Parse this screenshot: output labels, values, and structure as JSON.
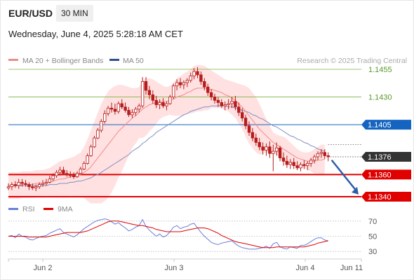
{
  "header": {
    "pair": "EUR/USD",
    "timeframe": "30 MIN",
    "datetime": "Wednesday, June 4, 2025 5:28:18 AM CET"
  },
  "legend": {
    "ma20": "MA 20 + Bollinger Bands",
    "ma50": "MA 50",
    "credit": "Research © 2025 Trading Central",
    "rsi": "RSI",
    "ma9": "9MA"
  },
  "colors": {
    "candle": "#b71c1c",
    "ma20": "#f08a8a",
    "band": "#ffc8c8",
    "ma50": "#8090c0",
    "support": "#e00000",
    "resistance": "#7cb342",
    "pivot": "#1565c0",
    "current": "#333333",
    "rsi": "#6a7fd8",
    "rsi_ma": "#e00000"
  },
  "chart_data": [
    {
      "type": "candlestick",
      "ylim": [
        1.1328,
        1.1467
      ],
      "x_labels": [
        "Jun 2",
        "Jun 3",
        "Jun 4",
        "Jun 11"
      ],
      "levels": [
        {
          "value": 1.1455,
          "label": "1.1455",
          "kind": "resistance"
        },
        {
          "value": 1.143,
          "label": "1.1430",
          "kind": "resistance"
        },
        {
          "value": 1.1405,
          "label": "1.1405",
          "kind": "pivot"
        },
        {
          "value": 1.1376,
          "label": "1.1376",
          "kind": "current"
        },
        {
          "value": 1.136,
          "label": "1.1360",
          "kind": "support"
        },
        {
          "value": 1.134,
          "label": "1.1340",
          "kind": "support"
        }
      ],
      "candles": [
        [
          1.1348,
          1.1352,
          1.1346,
          1.1349
        ],
        [
          1.1349,
          1.1353,
          1.1346,
          1.1351
        ],
        [
          1.1351,
          1.1354,
          1.1348,
          1.135
        ],
        [
          1.135,
          1.1356,
          1.1347,
          1.1353
        ],
        [
          1.1353,
          1.1356,
          1.1349,
          1.1352
        ],
        [
          1.1352,
          1.1355,
          1.1349,
          1.1351
        ],
        [
          1.1351,
          1.1353,
          1.1346,
          1.1349
        ],
        [
          1.1349,
          1.1352,
          1.1346,
          1.1348
        ],
        [
          1.1348,
          1.1351,
          1.1345,
          1.1349
        ],
        [
          1.1349,
          1.1353,
          1.1347,
          1.1351
        ],
        [
          1.1351,
          1.1355,
          1.1349,
          1.1352
        ],
        [
          1.1352,
          1.1356,
          1.135,
          1.1353
        ],
        [
          1.1353,
          1.1359,
          1.1352,
          1.1356
        ],
        [
          1.1356,
          1.1361,
          1.1354,
          1.1359
        ],
        [
          1.1359,
          1.1364,
          1.1357,
          1.1362
        ],
        [
          1.1362,
          1.1367,
          1.1359,
          1.1364
        ],
        [
          1.1364,
          1.1367,
          1.136,
          1.1361
        ],
        [
          1.1361,
          1.1364,
          1.1358,
          1.136
        ],
        [
          1.136,
          1.1363,
          1.1357,
          1.1359
        ],
        [
          1.1359,
          1.1362,
          1.1356,
          1.1358
        ],
        [
          1.1358,
          1.1363,
          1.1357,
          1.1361
        ],
        [
          1.1361,
          1.1367,
          1.136,
          1.1365
        ],
        [
          1.1365,
          1.1372,
          1.1364,
          1.137
        ],
        [
          1.137,
          1.1379,
          1.1369,
          1.1377
        ],
        [
          1.1377,
          1.1387,
          1.1376,
          1.1385
        ],
        [
          1.1385,
          1.1395,
          1.1384,
          1.1393
        ],
        [
          1.1393,
          1.1402,
          1.1392,
          1.14
        ],
        [
          1.14,
          1.141,
          1.1398,
          1.1408
        ],
        [
          1.1408,
          1.1418,
          1.1406,
          1.1415
        ],
        [
          1.1415,
          1.1422,
          1.1413,
          1.142
        ],
        [
          1.142,
          1.1425,
          1.1416,
          1.1419
        ],
        [
          1.1419,
          1.1424,
          1.1414,
          1.1417
        ],
        [
          1.1417,
          1.1426,
          1.1415,
          1.1424
        ],
        [
          1.1424,
          1.1428,
          1.1419,
          1.1421
        ],
        [
          1.1421,
          1.1425,
          1.1416,
          1.1418
        ],
        [
          1.1418,
          1.1421,
          1.1412,
          1.1414
        ],
        [
          1.1414,
          1.1419,
          1.1411,
          1.1416
        ],
        [
          1.1416,
          1.1421,
          1.1413,
          1.1419
        ],
        [
          1.1419,
          1.1424,
          1.1416,
          1.1422
        ],
        [
          1.1422,
          1.1448,
          1.142,
          1.1444
        ],
        [
          1.1444,
          1.1448,
          1.1432,
          1.1436
        ],
        [
          1.1436,
          1.144,
          1.1428,
          1.1432
        ],
        [
          1.1432,
          1.1436,
          1.1424,
          1.1427
        ],
        [
          1.1427,
          1.1431,
          1.142,
          1.1423
        ],
        [
          1.1423,
          1.1428,
          1.1419,
          1.1425
        ],
        [
          1.1425,
          1.1429,
          1.142,
          1.1422
        ],
        [
          1.1422,
          1.1426,
          1.1418,
          1.1424
        ],
        [
          1.1424,
          1.1432,
          1.1423,
          1.143
        ],
        [
          1.143,
          1.1442,
          1.1428,
          1.144
        ],
        [
          1.144,
          1.1446,
          1.1436,
          1.1443
        ],
        [
          1.1443,
          1.1447,
          1.1438,
          1.1441
        ],
        [
          1.1441,
          1.1445,
          1.1437,
          1.1443
        ],
        [
          1.1443,
          1.1447,
          1.1439,
          1.1445
        ],
        [
          1.1445,
          1.1452,
          1.1443,
          1.1449
        ],
        [
          1.1449,
          1.1456,
          1.1446,
          1.1453
        ],
        [
          1.1453,
          1.1457,
          1.1447,
          1.145
        ],
        [
          1.145,
          1.1453,
          1.1441,
          1.1444
        ],
        [
          1.1444,
          1.1447,
          1.1436,
          1.1439
        ],
        [
          1.1439,
          1.1442,
          1.1431,
          1.1434
        ],
        [
          1.1434,
          1.1437,
          1.1427,
          1.143
        ],
        [
          1.143,
          1.1433,
          1.1424,
          1.1427
        ],
        [
          1.1427,
          1.143,
          1.1421,
          1.1425
        ],
        [
          1.1425,
          1.1428,
          1.142,
          1.1422
        ],
        [
          1.1422,
          1.1426,
          1.1418,
          1.1423
        ],
        [
          1.1423,
          1.1428,
          1.1419,
          1.1424
        ],
        [
          1.1424,
          1.143,
          1.142,
          1.1426
        ],
        [
          1.1426,
          1.1431,
          1.1418,
          1.1421
        ],
        [
          1.1421,
          1.1425,
          1.1413,
          1.1416
        ],
        [
          1.1416,
          1.142,
          1.1408,
          1.1411
        ],
        [
          1.1411,
          1.1414,
          1.1401,
          1.1404
        ],
        [
          1.1404,
          1.1408,
          1.1395,
          1.1398
        ],
        [
          1.1398,
          1.1402,
          1.139,
          1.1393
        ],
        [
          1.1393,
          1.1397,
          1.1386,
          1.1389
        ],
        [
          1.1389,
          1.1393,
          1.1382,
          1.1385
        ],
        [
          1.1385,
          1.1389,
          1.1378,
          1.1382
        ],
        [
          1.1382,
          1.1388,
          1.1377,
          1.1385
        ],
        [
          1.1385,
          1.139,
          1.1375,
          1.1379
        ],
        [
          1.1379,
          1.1387,
          1.1363,
          1.1381
        ],
        [
          1.1381,
          1.1389,
          1.1377,
          1.1384
        ],
        [
          1.1384,
          1.1386,
          1.1372,
          1.1375
        ],
        [
          1.1375,
          1.138,
          1.1368,
          1.1372
        ],
        [
          1.1372,
          1.1377,
          1.1366,
          1.1369
        ],
        [
          1.1369,
          1.1374,
          1.1365,
          1.1371
        ],
        [
          1.1371,
          1.1375,
          1.1365,
          1.1368
        ],
        [
          1.1368,
          1.1372,
          1.1364,
          1.1366
        ],
        [
          1.1366,
          1.1371,
          1.1363,
          1.1369
        ],
        [
          1.1369,
          1.1373,
          1.1365,
          1.1368
        ],
        [
          1.1368,
          1.1372,
          1.1364,
          1.137
        ],
        [
          1.137,
          1.1375,
          1.1367,
          1.1373
        ],
        [
          1.1373,
          1.1378,
          1.137,
          1.1376
        ],
        [
          1.1376,
          1.1381,
          1.1373,
          1.1379
        ],
        [
          1.1379,
          1.1383,
          1.1375,
          1.138
        ],
        [
          1.138,
          1.1383,
          1.1374,
          1.1377
        ],
        [
          1.1377,
          1.138,
          1.1372,
          1.1376
        ]
      ],
      "ma20": [
        1.135,
        1.135,
        1.135,
        1.135,
        1.1351,
        1.1351,
        1.1351,
        1.1351,
        1.1352,
        1.1352,
        1.1352,
        1.1353,
        1.1353,
        1.1354,
        1.1355,
        1.1356,
        1.1356,
        1.1357,
        1.1358,
        1.1358,
        1.1359,
        1.136,
        1.1362,
        1.1364,
        1.1367,
        1.1371,
        1.1375,
        1.1379,
        1.1383,
        1.1387,
        1.1391,
        1.1395,
        1.1399,
        1.1402,
        1.1405,
        1.1408,
        1.1411,
        1.1413,
        1.1416,
        1.1419,
        1.1421,
        1.1423,
        1.1424,
        1.1425,
        1.1426,
        1.1426,
        1.1426,
        1.1427,
        1.1428,
        1.143,
        1.1431,
        1.1432,
        1.1434,
        1.1435,
        1.1437,
        1.1438,
        1.1438,
        1.1438,
        1.1437,
        1.1437,
        1.1436,
        1.1435,
        1.1434,
        1.1432,
        1.1431,
        1.1429,
        1.1427,
        1.1424,
        1.1421,
        1.1417,
        1.1413,
        1.1409,
        1.1405,
        1.1401,
        1.1398,
        1.1395,
        1.1392,
        1.1389,
        1.1387,
        1.1385,
        1.1383,
        1.1381,
        1.1379,
        1.1377,
        1.1375,
        1.1374,
        1.1373,
        1.1372,
        1.1372,
        1.1372,
        1.1373,
        1.1373,
        1.1374
      ],
      "band_upper": [
        1.1362,
        1.1362,
        1.1362,
        1.1362,
        1.1363,
        1.1363,
        1.1363,
        1.1363,
        1.1364,
        1.1364,
        1.1364,
        1.1365,
        1.1366,
        1.1368,
        1.137,
        1.1372,
        1.1373,
        1.1374,
        1.1375,
        1.1376,
        1.1378,
        1.138,
        1.1385,
        1.1392,
        1.14,
        1.1408,
        1.1416,
        1.1424,
        1.143,
        1.1435,
        1.1438,
        1.144,
        1.1441,
        1.1441,
        1.144,
        1.1439,
        1.1438,
        1.1438,
        1.1439,
        1.1445,
        1.1447,
        1.1447,
        1.1446,
        1.1444,
        1.1442,
        1.144,
        1.1439,
        1.144,
        1.1443,
        1.1447,
        1.1449,
        1.1451,
        1.1453,
        1.1455,
        1.1458,
        1.1459,
        1.1459,
        1.1458,
        1.1456,
        1.1454,
        1.1452,
        1.145,
        1.1448,
        1.1446,
        1.1445,
        1.1444,
        1.1443,
        1.1442,
        1.1441,
        1.144,
        1.1438,
        1.1434,
        1.143,
        1.1424,
        1.1417,
        1.141,
        1.1404,
        1.1398,
        1.1396,
        1.1395,
        1.1394,
        1.1392,
        1.1389,
        1.1386,
        1.1383,
        1.1381,
        1.138,
        1.138,
        1.1381,
        1.1383,
        1.1385,
        1.1387,
        1.1387
      ],
      "band_lower": [
        1.1338,
        1.1338,
        1.1338,
        1.1338,
        1.1339,
        1.1339,
        1.1339,
        1.1339,
        1.134,
        1.134,
        1.134,
        1.1341,
        1.134,
        1.134,
        1.134,
        1.134,
        1.1339,
        1.134,
        1.1341,
        1.134,
        1.134,
        1.134,
        1.1339,
        1.1336,
        1.1334,
        1.1334,
        1.1334,
        1.1334,
        1.1336,
        1.1339,
        1.1344,
        1.135,
        1.1357,
        1.1363,
        1.137,
        1.1377,
        1.1384,
        1.1388,
        1.1393,
        1.1393,
        1.1395,
        1.1399,
        1.1402,
        1.1406,
        1.141,
        1.1412,
        1.1413,
        1.1414,
        1.1413,
        1.1413,
        1.1413,
        1.1413,
        1.1415,
        1.1415,
        1.1416,
        1.1417,
        1.1417,
        1.1418,
        1.1418,
        1.142,
        1.142,
        1.142,
        1.142,
        1.1418,
        1.1417,
        1.1414,
        1.1411,
        1.1406,
        1.1401,
        1.1394,
        1.1388,
        1.1384,
        1.138,
        1.1378,
        1.1379,
        1.138,
        1.138,
        1.138,
        1.1378,
        1.1375,
        1.1372,
        1.137,
        1.1369,
        1.1368,
        1.1367,
        1.1367,
        1.1366,
        1.1364,
        1.1363,
        1.1361,
        1.1361,
        1.1359,
        1.1361
      ],
      "ma50": [
        1.135,
        1.135,
        1.135,
        1.135,
        1.135,
        1.135,
        1.135,
        1.135,
        1.135,
        1.135,
        1.135,
        1.135,
        1.1351,
        1.1351,
        1.1351,
        1.1352,
        1.1352,
        1.1352,
        1.1353,
        1.1353,
        1.1354,
        1.1354,
        1.1355,
        1.1356,
        1.1357,
        1.1359,
        1.136,
        1.1362,
        1.1364,
        1.1366,
        1.1368,
        1.137,
        1.1372,
        1.1374,
        1.1376,
        1.1378,
        1.1381,
        1.1383,
        1.1385,
        1.1388,
        1.139,
        1.1393,
        1.1395,
        1.1398,
        1.14,
        1.1402,
        1.1404,
        1.1406,
        1.1408,
        1.141,
        1.1412,
        1.1414,
        1.1415,
        1.1417,
        1.1418,
        1.1419,
        1.142,
        1.1421,
        1.1421,
        1.1422,
        1.1422,
        1.1422,
        1.1422,
        1.1422,
        1.1421,
        1.1421,
        1.142,
        1.1419,
        1.1418,
        1.1417,
        1.1416,
        1.1414,
        1.1413,
        1.1411,
        1.141,
        1.1408,
        1.1406,
        1.1404,
        1.1403,
        1.1401,
        1.1399,
        1.1397,
        1.1395,
        1.1394,
        1.1392,
        1.1391,
        1.1389,
        1.1388,
        1.1386,
        1.1385,
        1.1383,
        1.1382,
        1.1381
      ]
    },
    {
      "type": "line",
      "ylim": [
        20,
        80
      ],
      "ticks": [
        70,
        50,
        30
      ],
      "series": [
        {
          "name": "RSI",
          "values": [
            50,
            51,
            48,
            53,
            50,
            49,
            46,
            45,
            47,
            49,
            50,
            51,
            54,
            56,
            58,
            60,
            55,
            53,
            51,
            49,
            52,
            56,
            60,
            63,
            66,
            69,
            71,
            72,
            73,
            72,
            69,
            66,
            68,
            64,
            61,
            57,
            59,
            62,
            64,
            72,
            63,
            58,
            54,
            50,
            53,
            49,
            51,
            56,
            62,
            64,
            60,
            62,
            63,
            66,
            67,
            61,
            55,
            50,
            46,
            42,
            40,
            39,
            41,
            42,
            43,
            44,
            40,
            37,
            35,
            34,
            33,
            33,
            33,
            34,
            35,
            37,
            34,
            40,
            42,
            36,
            34,
            33,
            36,
            35,
            34,
            38,
            38,
            40,
            43,
            46,
            48,
            48,
            45,
            44
          ]
        },
        {
          "name": "9MA",
          "values": [
            50,
            50,
            50,
            50,
            50,
            50,
            49,
            49,
            49,
            49,
            49,
            49,
            50,
            51,
            52,
            53,
            54,
            55,
            55,
            55,
            55,
            55,
            56,
            57,
            59,
            61,
            63,
            65,
            67,
            69,
            70,
            70,
            70,
            69,
            68,
            67,
            66,
            65,
            64,
            64,
            63,
            62,
            61,
            59,
            58,
            57,
            56,
            56,
            56,
            56,
            56,
            57,
            58,
            59,
            60,
            61,
            61,
            61,
            60,
            58,
            56,
            54,
            51,
            49,
            47,
            45,
            43,
            42,
            41,
            40,
            39,
            38,
            37,
            36,
            35,
            35,
            35,
            35,
            36,
            36,
            36,
            36,
            36,
            36,
            36,
            36,
            36,
            37,
            38,
            39,
            41,
            42,
            43,
            44
          ]
        }
      ]
    }
  ]
}
